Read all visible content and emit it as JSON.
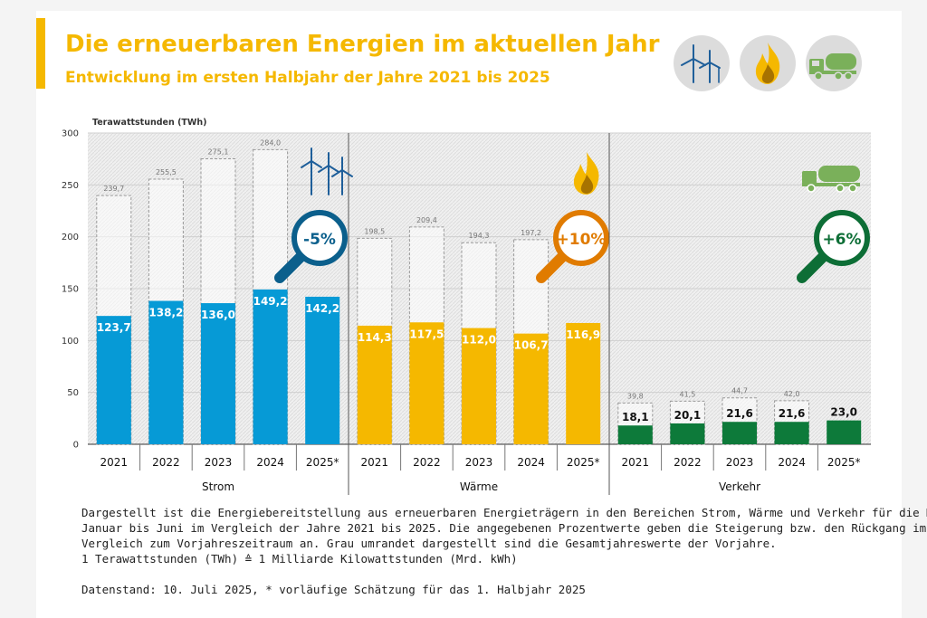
{
  "header": {
    "title": "Die erneuerbaren Energien im aktuellen Jahr",
    "subtitle": "Entwicklung im ersten Halbjahr der Jahre 2021 bis 2025",
    "icons": [
      "wind-turbine-icon",
      "flame-icon",
      "tanker-truck-icon"
    ]
  },
  "colors": {
    "title": "#f5b800",
    "strom": "#069ad6",
    "waerme": "#f5b800",
    "verkehr": "#0d7a3a",
    "badge_strom": "#0b5f8c",
    "badge_waerme": "#e07b00",
    "badge_verkehr": "#0d6e36"
  },
  "chart_data": {
    "type": "bar",
    "ylabel": "Terawattstunden (TWh)",
    "ylim": [
      0,
      300
    ],
    "yticks": [
      "0",
      "50",
      "100",
      "150",
      "200",
      "250",
      "300"
    ],
    "grid": true,
    "groups": [
      {
        "name": "Strom",
        "color": "#069ad6",
        "badge": "-5%",
        "icon": "wind-turbine-icon",
        "categories": [
          "2021",
          "2022",
          "2023",
          "2024",
          "2025*"
        ],
        "first_half": [
          123.7,
          138.2,
          136.0,
          149.2,
          142.2
        ],
        "first_half_labels": [
          "123,7",
          "138,2",
          "136,0",
          "149,2",
          "142,2"
        ],
        "full_year": [
          239.7,
          255.5,
          275.1,
          284.0,
          null
        ],
        "full_year_labels": [
          "239,7",
          "255,5",
          "275,1",
          "284,0",
          ""
        ]
      },
      {
        "name": "Wärme",
        "color": "#f5b800",
        "badge": "+10%",
        "icon": "flame-icon",
        "categories": [
          "2021",
          "2022",
          "2023",
          "2024",
          "2025*"
        ],
        "first_half": [
          114.3,
          117.5,
          112.0,
          106.7,
          116.9
        ],
        "first_half_labels": [
          "114,3",
          "117,5",
          "112,0",
          "106,7",
          "116,9"
        ],
        "full_year": [
          198.5,
          209.4,
          194.3,
          197.2,
          null
        ],
        "full_year_labels": [
          "198,5",
          "209,4",
          "194,3",
          "197,2",
          ""
        ]
      },
      {
        "name": "Verkehr",
        "color": "#0d7a3a",
        "badge": "+6%",
        "icon": "tanker-truck-icon",
        "categories": [
          "2021",
          "2022",
          "2023",
          "2024",
          "2025*"
        ],
        "first_half": [
          18.1,
          20.1,
          21.6,
          21.6,
          23.0
        ],
        "first_half_labels": [
          "18,1",
          "20,1",
          "21,6",
          "21,6",
          "23,0"
        ],
        "full_year": [
          39.8,
          41.5,
          44.7,
          42.0,
          null
        ],
        "full_year_labels": [
          "39,8",
          "41,5",
          "44,7",
          "42,0",
          ""
        ]
      }
    ]
  },
  "footnote": {
    "line1": "Dargestellt ist die Energiebereitstellung aus erneuerbaren Energieträgern in den Bereichen Strom, Wärme und Verkehr für die Monate",
    "line2": "Januar bis Juni im Vergleich der Jahre 2021 bis 2025. Die angegebenen Prozentwerte geben die Steigerung bzw. den Rückgang im",
    "line3": "Vergleich zum Vorjahreszeitraum an. Grau umrandet dargestellt sind die Gesamtjahreswerte der Vorjahre.",
    "line4": "1 Terawattstunden (TWh) ≙ 1 Milliarde Kilowattstunden (Mrd. kWh)",
    "line5": "Datenstand: 10. Juli 2025, * vorläufige Schätzung für das 1. Halbjahr 2025"
  }
}
